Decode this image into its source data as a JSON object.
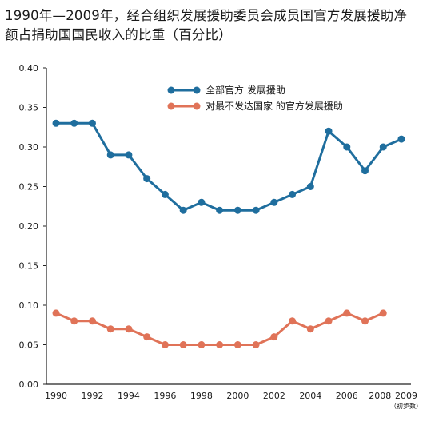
{
  "chart_data": {
    "type": "line",
    "title_line1": "1990年—2009年，经合组织发展援助委员会成员国官方发展援助净",
    "title_line2": "额占捐助国国民收入的比重（百分比）",
    "x": [
      1990,
      1991,
      1992,
      1993,
      1994,
      1995,
      1996,
      1997,
      1998,
      1999,
      2000,
      2001,
      2002,
      2003,
      2004,
      2005,
      2006,
      2007,
      2008,
      2009
    ],
    "x_ticks": [
      "1990",
      "1992",
      "1994",
      "1996",
      "1998",
      "2000",
      "2002",
      "2004",
      "2006",
      "2008",
      "2009"
    ],
    "x_tick_note": "（初步数）",
    "ylim": [
      0,
      0.4
    ],
    "y_ticks": [
      "0.00",
      "0.05",
      "0.10",
      "0.15",
      "0.20",
      "0.25",
      "0.30",
      "0.35",
      "0.40"
    ],
    "grid": false,
    "legend_position": "top-right",
    "series": [
      {
        "name": "全部官方  发展援助",
        "color": "#1f6e9e",
        "values": [
          0.33,
          0.33,
          0.33,
          0.29,
          0.29,
          0.26,
          0.24,
          0.22,
          0.23,
          0.22,
          0.22,
          0.22,
          0.23,
          0.24,
          0.25,
          0.32,
          0.3,
          0.27,
          0.3,
          0.31
        ]
      },
      {
        "name": "对最不发达国家  的官方发展援助",
        "color": "#e07358",
        "values": [
          0.09,
          0.08,
          0.08,
          0.07,
          0.07,
          0.06,
          0.05,
          0.05,
          0.05,
          0.05,
          0.05,
          0.05,
          0.06,
          0.08,
          0.07,
          0.08,
          0.09,
          0.08,
          0.09,
          null
        ]
      }
    ]
  }
}
